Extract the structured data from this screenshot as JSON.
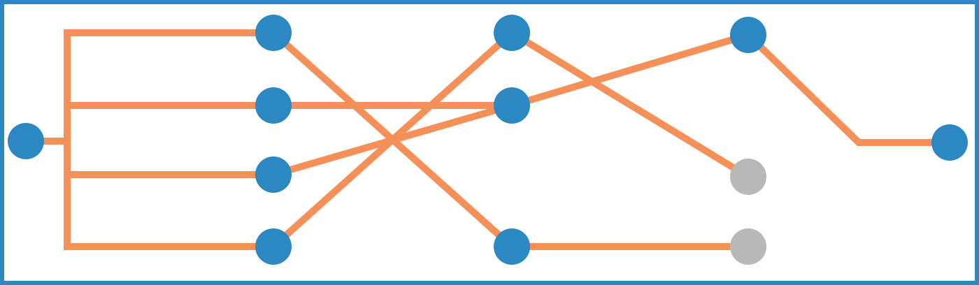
{
  "colors": {
    "frame": "#2b88c3",
    "edge": "#f59158",
    "node_active": "#2b88c3",
    "node_inactive": "#b8b8b8",
    "background": "#ffffff"
  },
  "nodes": [
    {
      "id": "input",
      "column": 0,
      "row": 2.5,
      "status": "active"
    },
    {
      "id": "layer1-a",
      "column": 1,
      "row": 1,
      "status": "active"
    },
    {
      "id": "layer1-b",
      "column": 1,
      "row": 2,
      "status": "active"
    },
    {
      "id": "layer1-c",
      "column": 1,
      "row": 3,
      "status": "active"
    },
    {
      "id": "layer1-d",
      "column": 1,
      "row": 4,
      "status": "active"
    },
    {
      "id": "layer2-a",
      "column": 2,
      "row": 1,
      "status": "active"
    },
    {
      "id": "layer2-b",
      "column": 2,
      "row": 2,
      "status": "active"
    },
    {
      "id": "layer2-c",
      "column": 2,
      "row": 4,
      "status": "active"
    },
    {
      "id": "layer3-a",
      "column": 3,
      "row": 1,
      "status": "active"
    },
    {
      "id": "layer3-b",
      "column": 3,
      "row": 3,
      "status": "inactive"
    },
    {
      "id": "layer3-c",
      "column": 3,
      "row": 4,
      "status": "inactive"
    },
    {
      "id": "output",
      "column": 4,
      "row": 2.5,
      "status": "active"
    }
  ],
  "edges": [
    {
      "from": "input",
      "to": "layer1-a"
    },
    {
      "from": "input",
      "to": "layer1-b"
    },
    {
      "from": "input",
      "to": "layer1-c"
    },
    {
      "from": "input",
      "to": "layer1-d"
    },
    {
      "from": "layer1-a",
      "to": "layer2-c"
    },
    {
      "from": "layer1-b",
      "to": "layer2-b"
    },
    {
      "from": "layer1-c",
      "to": "layer2-b"
    },
    {
      "from": "layer1-d",
      "to": "layer2-a"
    },
    {
      "from": "layer2-a",
      "to": "layer3-b"
    },
    {
      "from": "layer2-b",
      "to": "layer3-a"
    },
    {
      "from": "layer2-c",
      "to": "layer3-c"
    },
    {
      "from": "layer3-a",
      "to": "output"
    }
  ]
}
